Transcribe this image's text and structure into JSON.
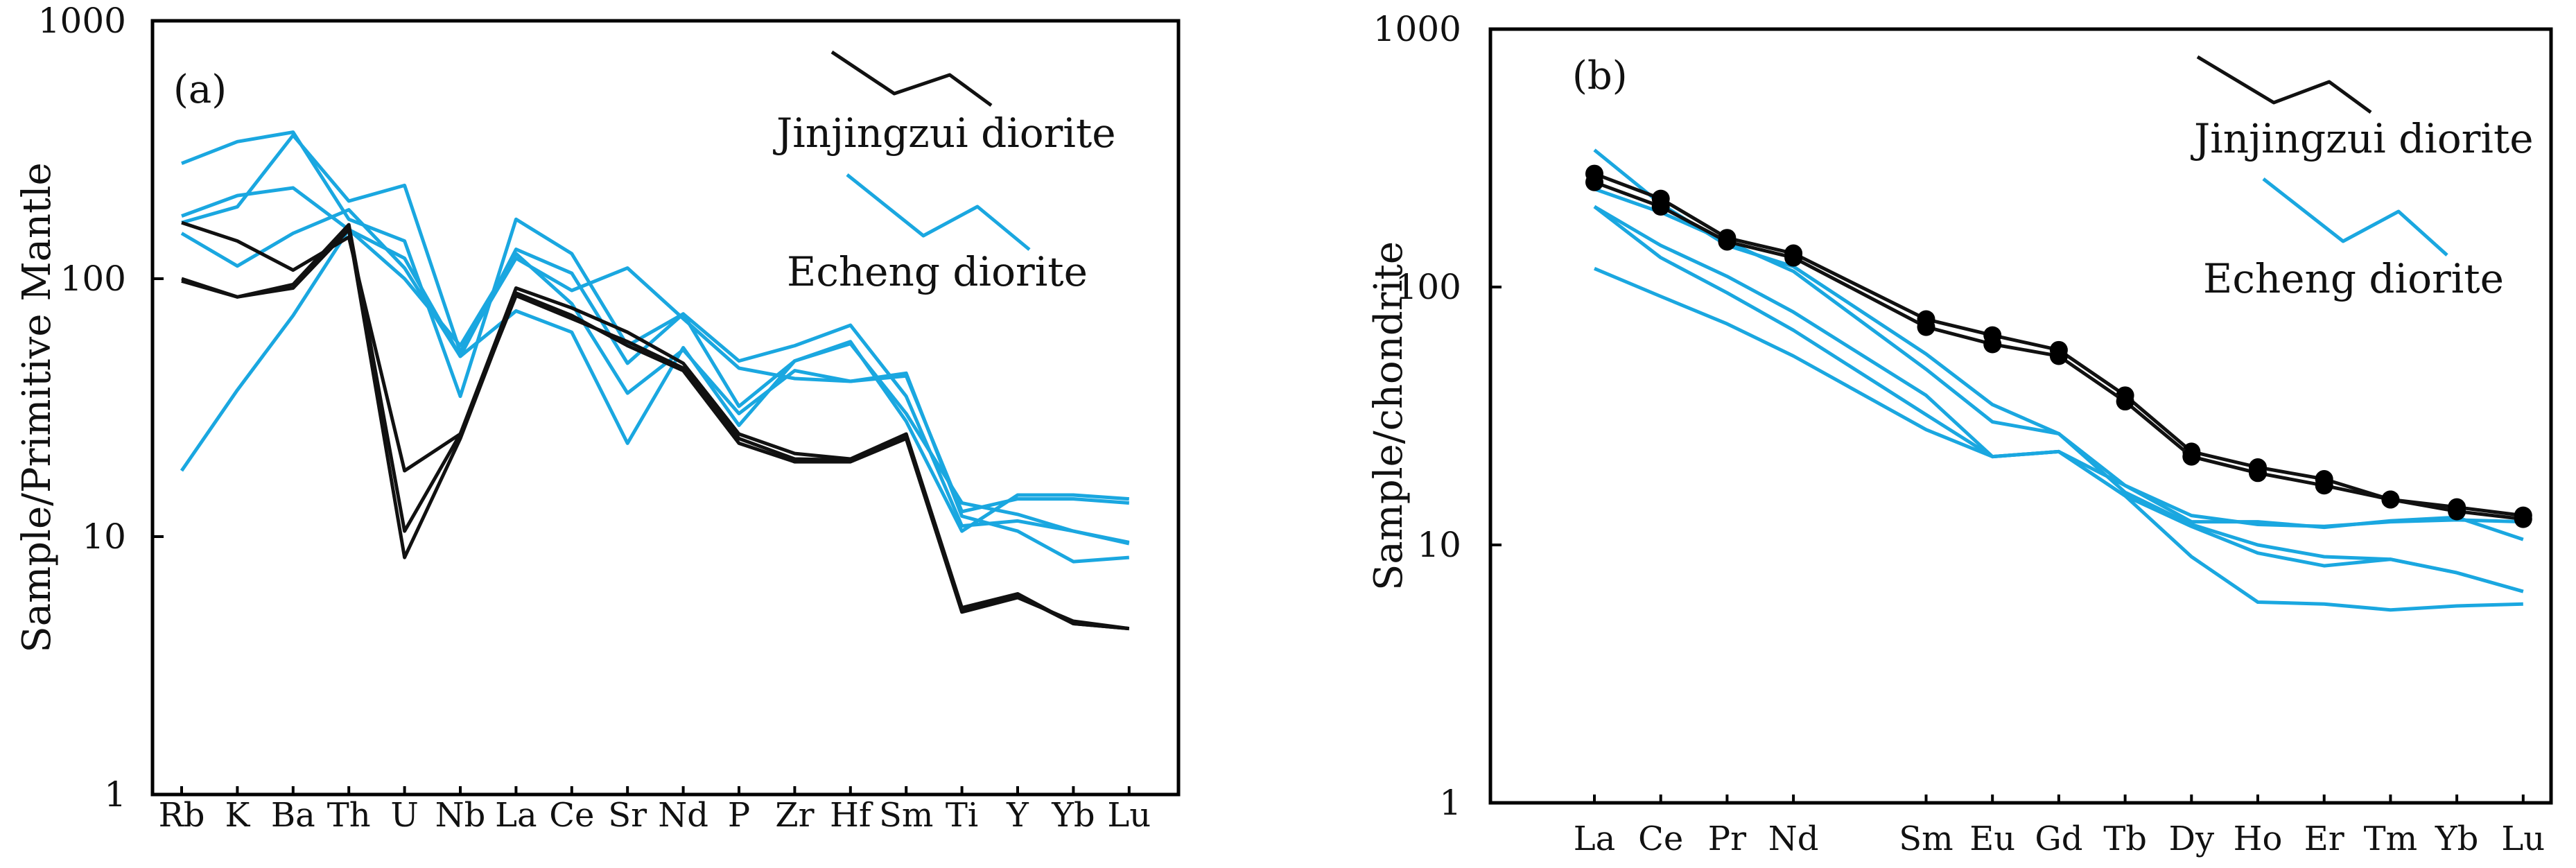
{
  "colors": {
    "jinjingzui": "#111111",
    "echeng": "#1aa7e0"
  },
  "panels": [
    {
      "panel_label": "(a)",
      "legend": {
        "jinjingzui": "Jinjingzui diorite",
        "echeng": "Echeng diorite"
      }
    },
    {
      "panel_label": "(b)",
      "legend": {
        "jinjingzui": "Jinjingzui diorite",
        "echeng": "Echeng diorite"
      }
    }
  ],
  "chart_data": [
    {
      "type": "line",
      "yscale": "log",
      "ylim": [
        1,
        1000
      ],
      "ylabel": "Sample/Primitive Mantle",
      "xlabel": "",
      "ytick_labels": [
        "1",
        "10",
        "100",
        "1000"
      ],
      "yticks": [
        1,
        10,
        100,
        1000
      ],
      "categories": [
        "Rb",
        "K",
        "Ba",
        "Th",
        "U",
        "Nb",
        "La",
        "Ce",
        "Sr",
        "Nd",
        "P",
        "Zr",
        "Hf",
        "Sm",
        "Ti",
        "Y",
        "Yb",
        "Lu"
      ],
      "series": [
        {
          "name": "Jinjingzui diorite",
          "group": "jinjingzui",
          "values": [
            165,
            140,
            108,
            145,
            18,
            25,
            92,
            77,
            62,
            47,
            25,
            21,
            20,
            25,
            5.3,
            6.0,
            4.6,
            4.4
          ]
        },
        {
          "name": "Jinjingzui diorite",
          "group": "jinjingzui",
          "values": [
            100,
            85,
            92,
            155,
            8.3,
            24,
            88,
            72,
            55,
            44,
            23,
            19.5,
            19.5,
            24,
            5.1,
            5.8,
            4.7,
            4.4
          ]
        },
        {
          "name": "Jinjingzui diorite",
          "group": "jinjingzui",
          "values": [
            98,
            85,
            95,
            162,
            10.5,
            25,
            86,
            70,
            57,
            45,
            24,
            20,
            19.8,
            24.5,
            5.2,
            5.9,
            4.6,
            4.4
          ]
        },
        {
          "name": "Echeng diorite",
          "group": "echeng",
          "values": [
            280,
            340,
            370,
            170,
            140,
            35,
            170,
            125,
            55,
            73,
            48,
            55,
            66,
            35,
            11,
            11.5,
            10.5,
            9.5
          ]
        },
        {
          "name": "Echeng diorite",
          "group": "echeng",
          "values": [
            175,
            210,
            225,
            155,
            120,
            50,
            130,
            105,
            47,
            73,
            32,
            48,
            56,
            30,
            13.5,
            12.2,
            10.5,
            9.4
          ]
        },
        {
          "name": "Echeng diorite",
          "group": "echeng",
          "values": [
            165,
            190,
            360,
            200,
            230,
            52,
            120,
            90,
            110,
            70,
            45,
            41,
            40,
            42,
            12.5,
            14,
            14,
            13.5
          ]
        },
        {
          "name": "Echeng diorite",
          "group": "echeng",
          "values": [
            150,
            112,
            150,
            185,
            110,
            50,
            75,
            62,
            23,
            54,
            27,
            48,
            57,
            28,
            10.5,
            14.5,
            14.5,
            14
          ]
        },
        {
          "name": "Echeng diorite",
          "group": "echeng",
          "values": [
            18,
            37,
            72,
            155,
            100,
            55,
            125,
            80,
            36,
            53,
            30,
            44,
            40,
            43,
            12,
            10.5,
            8,
            8.3
          ]
        }
      ]
    },
    {
      "type": "line",
      "yscale": "log",
      "ylim": [
        1,
        1000
      ],
      "ylabel": "Sample/chondrite",
      "xlabel": "",
      "ytick_labels": [
        "1",
        "10",
        "100",
        "1000"
      ],
      "yticks": [
        1,
        10,
        100,
        1000
      ],
      "categories": [
        "La",
        "Ce",
        "Pr",
        "Nd",
        "",
        "Sm",
        "Eu",
        "Gd",
        "Tb",
        "Dy",
        "Ho",
        "Er",
        "Tm",
        "Yb",
        "Lu"
      ],
      "series": [
        {
          "name": "Jinjingzui diorite",
          "group": "jinjingzui",
          "markers": true,
          "values": [
            275,
            220,
            155,
            135,
            null,
            75,
            65,
            57,
            38,
            23,
            20,
            18,
            15,
            14,
            13
          ]
        },
        {
          "name": "Jinjingzui diorite",
          "group": "jinjingzui",
          "markers": true,
          "values": [
            255,
            205,
            150,
            130,
            null,
            70,
            60,
            54,
            36,
            22,
            19,
            17,
            15,
            13.5,
            12.6
          ]
        },
        {
          "name": "Echeng diorite",
          "group": "echeng",
          "values": [
            340,
            210,
            145,
            120,
            null,
            55,
            35,
            27,
            16,
            12,
            10,
            9,
            8.8,
            7.8,
            6.6
          ]
        },
        {
          "name": "Echeng diorite",
          "group": "echeng",
          "values": [
            240,
            195,
            150,
            115,
            null,
            48,
            30,
            27,
            17,
            12.3,
            12.3,
            11.7,
            12.4,
            12.8,
            10.5
          ]
        },
        {
          "name": "Echeng diorite",
          "group": "echeng",
          "values": [
            205,
            145,
            110,
            80,
            null,
            38,
            22,
            23,
            15.5,
            11.8,
            9.3,
            8.3,
            8.8,
            7.8,
            6.6
          ]
        },
        {
          "name": "Echeng diorite",
          "group": "echeng",
          "values": [
            205,
            130,
            95,
            68,
            null,
            32,
            22,
            23,
            15.5,
            9,
            6,
            5.9,
            5.6,
            5.8,
            5.9
          ]
        },
        {
          "name": "Echeng diorite",
          "group": "echeng",
          "values": [
            118,
            92,
            72,
            54,
            null,
            28,
            22,
            23,
            17,
            13,
            12,
            11.8,
            12.3,
            12.5,
            12.3
          ]
        }
      ]
    }
  ]
}
